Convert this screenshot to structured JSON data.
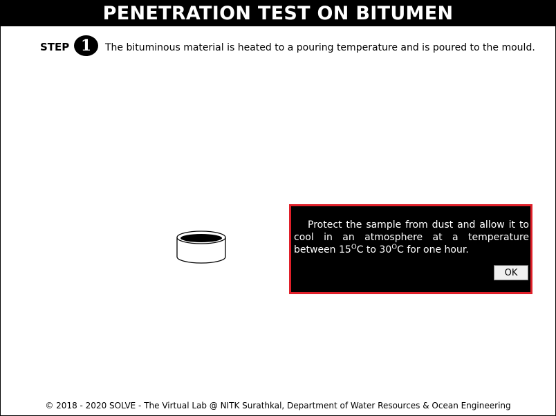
{
  "header": {
    "title": "PENETRATION TEST ON BITUMEN"
  },
  "step": {
    "label": "STEP",
    "number": "1",
    "text": "The bituminous material is heated to a pouring temperature and is poured to the mould."
  },
  "dialog": {
    "text_main": "Protect the sample from dust and allow it to cool in an atmosphere at a temperature between 15",
    "degree_sup": "O",
    "text_mid": "C to 30",
    "text_end": "C for one hour.",
    "ok_label": "OK",
    "border_color": "#e0202a"
  },
  "footer": {
    "text": "© 2018 - 2020 SOLVE - The Virtual Lab @ NITK Surathkal, Department of Water Resources & Ocean Engineering"
  },
  "icons": [
    "mould-icon"
  ]
}
